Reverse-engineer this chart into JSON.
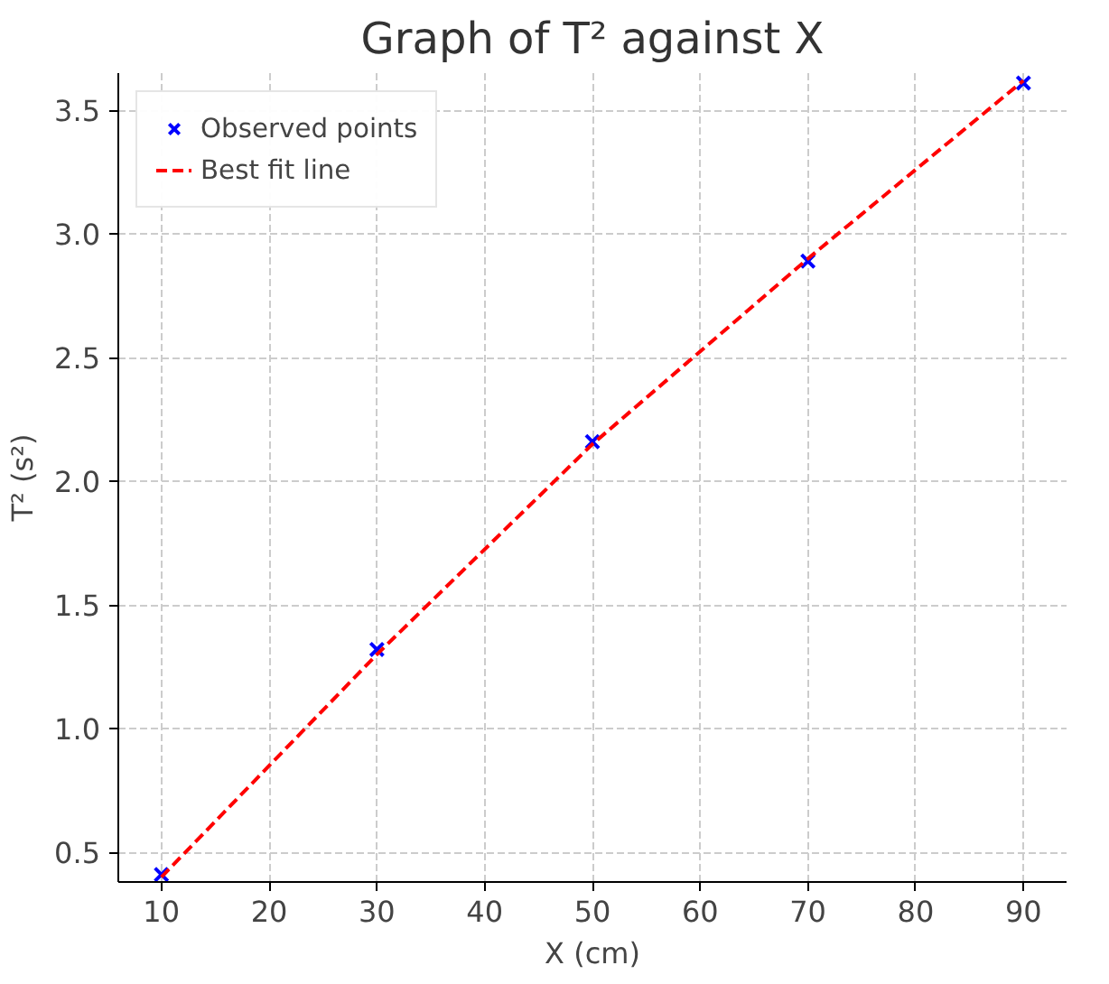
{
  "chart_data": {
    "type": "scatter",
    "title": "Graph of T² against X",
    "xlabel": "X (cm)",
    "ylabel": "T² (s²)",
    "xlim": [
      6,
      94
    ],
    "ylim": [
      0.38,
      3.65
    ],
    "xticks": [
      10,
      20,
      30,
      40,
      50,
      60,
      70,
      80,
      90
    ],
    "yticks": [
      0.5,
      {
        "value": 1,
        "label": "1.0"
      },
      1.5,
      {
        "value": 2,
        "label": "2.0"
      },
      2.5,
      {
        "value": 3,
        "label": "3.0"
      },
      3.5
    ],
    "grid": true,
    "legend": "top left",
    "series": [
      {
        "name": "Observed points",
        "color": "#0000ff",
        "marker": "cross",
        "x": [
          10,
          30,
          50,
          70,
          90
        ],
        "values": [
          0.41,
          1.32,
          2.16,
          2.89,
          3.61
        ]
      },
      {
        "name": "Best fit line",
        "type": "line",
        "color": "#ff0000",
        "line_style": "dashed",
        "x": [
          10,
          30,
          50,
          70,
          90
        ],
        "values": [
          0.4,
          1.3,
          2.15,
          2.9,
          3.62
        ]
      }
    ]
  }
}
